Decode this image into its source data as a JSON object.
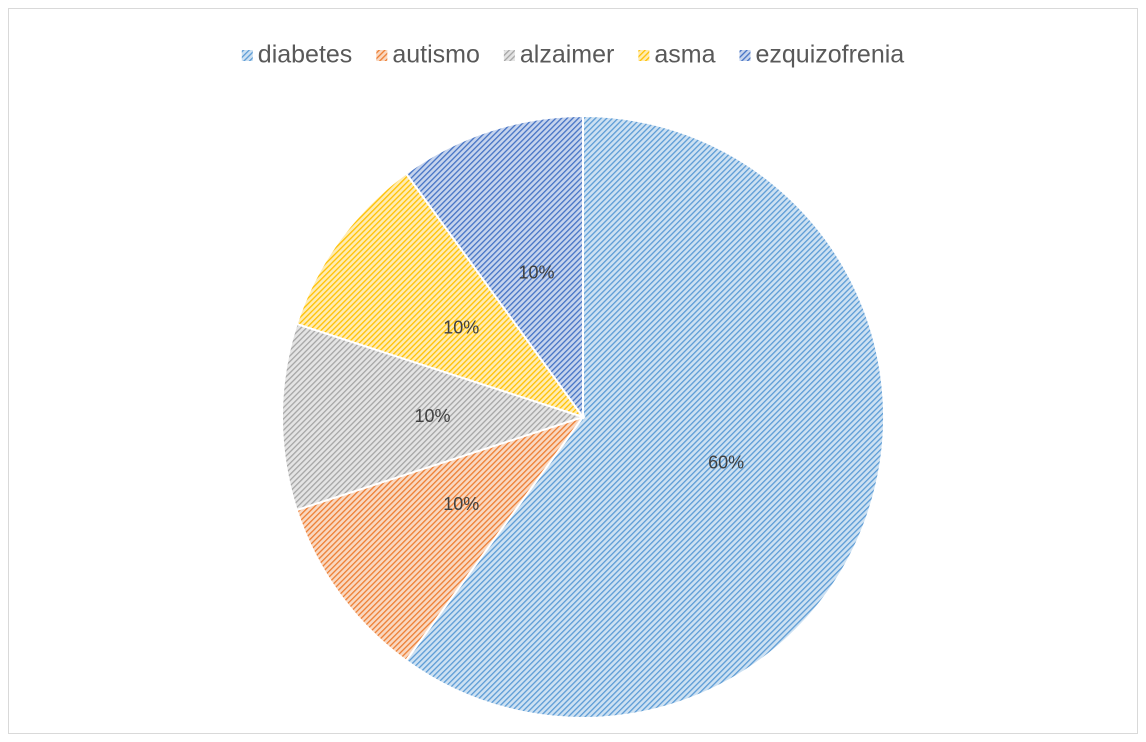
{
  "chart_data": {
    "type": "pie",
    "categories": [
      "diabetes",
      "autismo",
      "alzaimer",
      "asma",
      "ezquizofrenia"
    ],
    "values": [
      60,
      10,
      10,
      10,
      10
    ],
    "value_labels": [
      "60%",
      "10%",
      "10%",
      "10%",
      "10%"
    ],
    "colors": [
      "#5b9bd5",
      "#ed7d31",
      "#a5a5a5",
      "#ffc000",
      "#4472c4"
    ],
    "legend": "top"
  }
}
